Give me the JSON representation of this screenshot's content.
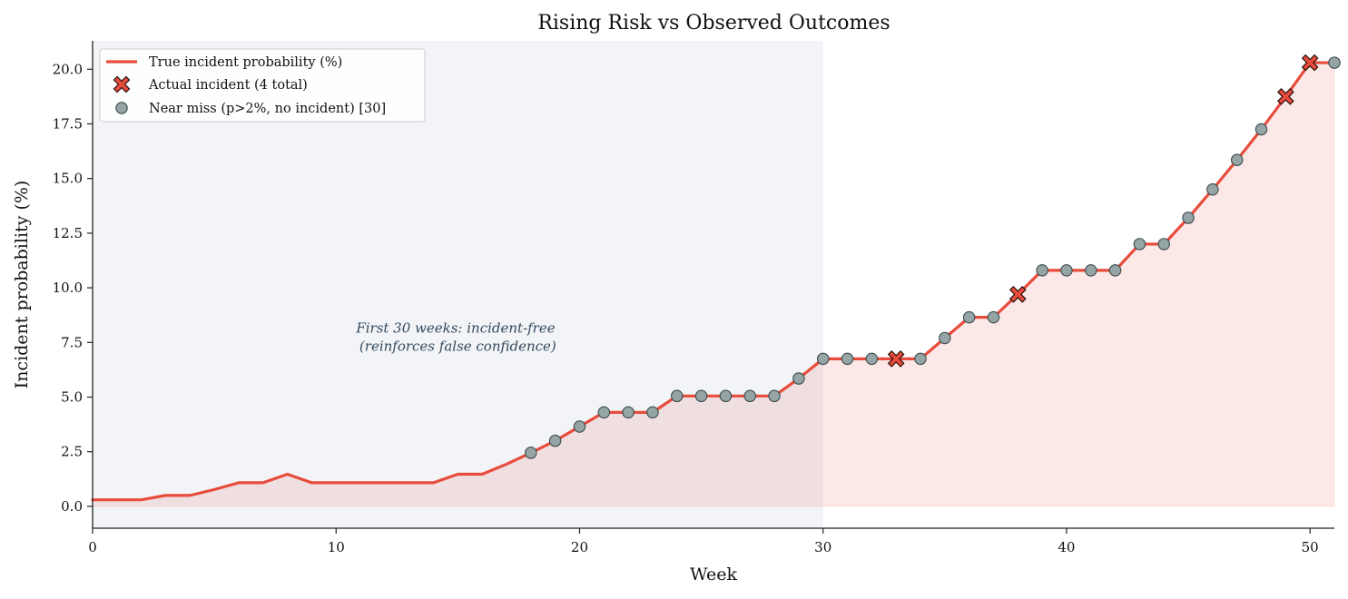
{
  "chart_data": {
    "type": "line",
    "title": "Rising Risk vs Observed Outcomes",
    "xlabel": "Week",
    "ylabel": "Incident probability (%)",
    "xlim": [
      0,
      51
    ],
    "ylim": [
      -1,
      21.3
    ],
    "xticks": [
      0,
      10,
      20,
      30,
      40,
      50
    ],
    "yticks": [
      0.0,
      2.5,
      5.0,
      7.5,
      10.0,
      12.5,
      15.0,
      17.5,
      20.0
    ],
    "grid": false,
    "legend_position": "top-left",
    "shaded_region": {
      "x_start": 0,
      "x_end": 30,
      "color": "#e8ebf0"
    },
    "annotation": {
      "x": 15,
      "y": 7.5,
      "lines": [
        "First 30 weeks: incident-free",
        "(reinforces false confidence)"
      ]
    },
    "colors": {
      "line": "#e74c3c",
      "fill": "#fbe6e6",
      "near_miss": "#95a5a6",
      "incident": "#e74c3c"
    },
    "series": [
      {
        "name": "True incident probability (%)",
        "kind": "line",
        "x": [
          0,
          1,
          2,
          3,
          4,
          5,
          6,
          7,
          8,
          9,
          10,
          11,
          12,
          13,
          14,
          15,
          16,
          17,
          18,
          19,
          20,
          21,
          22,
          23,
          24,
          25,
          26,
          27,
          28,
          29,
          30,
          31,
          32,
          33,
          34,
          35,
          36,
          37,
          38,
          39,
          40,
          41,
          42,
          43,
          44,
          45,
          46,
          47,
          48,
          49,
          50,
          51
        ],
        "y": [
          0.3,
          0.3,
          0.3,
          0.5,
          0.5,
          0.77,
          1.08,
          1.08,
          1.47,
          1.08,
          1.08,
          1.08,
          1.08,
          1.08,
          1.08,
          1.47,
          1.47,
          1.93,
          2.45,
          3.0,
          3.65,
          4.3,
          4.3,
          4.3,
          5.05,
          5.05,
          5.05,
          5.05,
          5.05,
          5.85,
          6.75,
          6.75,
          6.75,
          6.75,
          6.75,
          7.7,
          8.65,
          8.65,
          9.7,
          10.8,
          10.8,
          10.8,
          10.8,
          12.0,
          12.0,
          13.2,
          14.5,
          15.85,
          17.25,
          18.75,
          20.3,
          20.3
        ]
      },
      {
        "name": "Actual incident (4 total)",
        "kind": "scatter",
        "marker": "x",
        "x": [
          33,
          38,
          49,
          50
        ],
        "y": [
          6.75,
          9.7,
          18.75,
          20.3
        ]
      },
      {
        "name": "Near miss (p>2%, no incident) [30]",
        "kind": "scatter",
        "marker": "circle",
        "x": [
          18,
          19,
          20,
          21,
          22,
          23,
          24,
          25,
          26,
          27,
          28,
          29,
          30,
          31,
          32,
          34,
          35,
          36,
          37,
          39,
          40,
          41,
          42,
          43,
          44,
          45,
          46,
          47,
          48,
          51
        ],
        "y": [
          2.45,
          3.0,
          3.65,
          4.3,
          4.3,
          4.3,
          5.05,
          5.05,
          5.05,
          5.05,
          5.05,
          5.85,
          6.75,
          6.75,
          6.75,
          6.75,
          7.7,
          8.65,
          8.65,
          10.8,
          10.8,
          10.8,
          10.8,
          12.0,
          12.0,
          13.2,
          14.5,
          15.85,
          17.25,
          20.3
        ]
      }
    ]
  }
}
